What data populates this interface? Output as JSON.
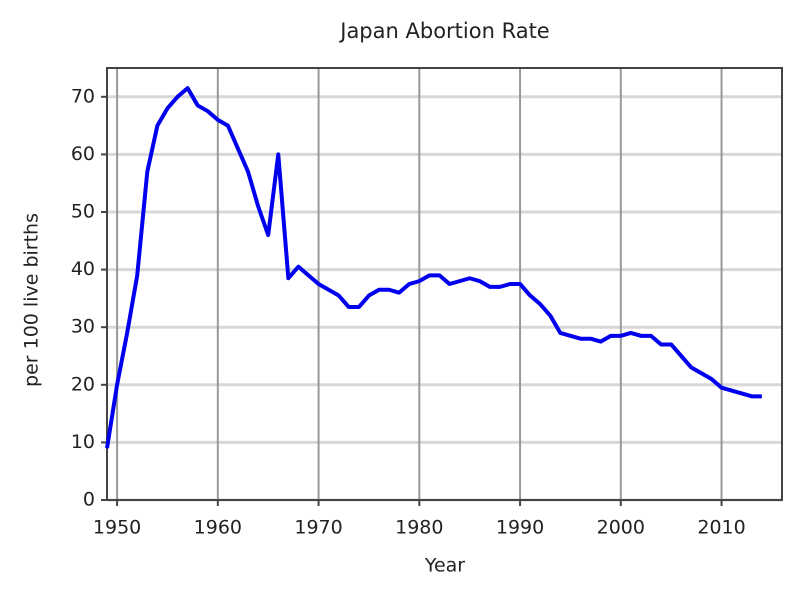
{
  "chart_data": {
    "type": "line",
    "title": "Japan Abortion Rate",
    "x_label": "Year",
    "y_label": "per 100 live births",
    "x": [
      1949,
      1950,
      1951,
      1952,
      1953,
      1954,
      1955,
      1956,
      1957,
      1958,
      1959,
      1960,
      1961,
      1962,
      1963,
      1964,
      1965,
      1966,
      1967,
      1968,
      1969,
      1970,
      1971,
      1972,
      1973,
      1974,
      1975,
      1976,
      1977,
      1978,
      1979,
      1980,
      1981,
      1982,
      1983,
      1984,
      1985,
      1986,
      1987,
      1988,
      1989,
      1990,
      1991,
      1992,
      1993,
      1994,
      1995,
      1996,
      1997,
      1998,
      1999,
      2000,
      2001,
      2002,
      2003,
      2004,
      2005,
      2006,
      2007,
      2008,
      2009,
      2010,
      2011,
      2012,
      2013,
      2014
    ],
    "series": [
      {
        "name": "Abortion rate",
        "color": "#0000ee",
        "values": [
          9,
          20,
          29,
          39,
          57,
          65,
          68,
          70,
          71.5,
          68.5,
          67.5,
          66,
          65,
          61,
          57,
          51,
          46,
          60,
          38.5,
          40.5,
          39,
          37.5,
          36.5,
          35.5,
          33.5,
          33.5,
          35.5,
          36.5,
          36.5,
          36,
          37.5,
          38,
          39,
          39,
          37.5,
          38,
          38.5,
          38,
          37,
          37,
          37.5,
          37.5,
          35.5,
          34,
          32,
          29,
          28.5,
          28,
          28,
          27.5,
          28.5,
          28.5,
          29,
          28.5,
          28.5,
          27,
          27,
          25,
          23,
          22,
          21,
          19.5,
          19,
          18.5,
          18,
          18
        ]
      }
    ],
    "xlim": [
      1949,
      2016
    ],
    "ylim": [
      0,
      75
    ],
    "xticks": [
      1950,
      1960,
      1970,
      1980,
      1990,
      2000,
      2010
    ],
    "yticks": [
      0,
      10,
      20,
      30,
      40,
      50,
      60,
      70
    ],
    "grid": true
  }
}
